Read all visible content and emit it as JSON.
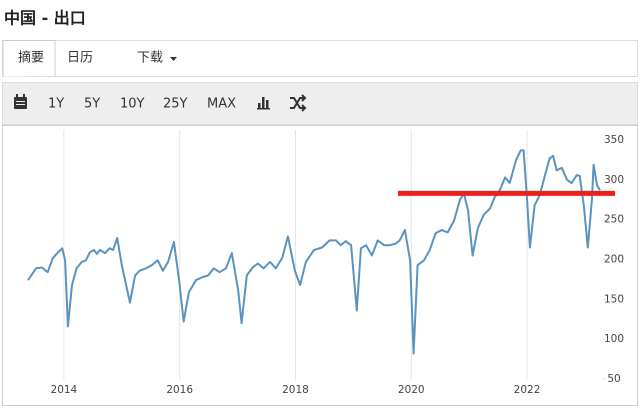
{
  "page_title": "中国 - 出口",
  "tabs": [
    "摘要",
    "日历",
    "下载"
  ],
  "toolbar": [
    "1Y",
    "5Y",
    "10Y",
    "25Y",
    "MAX"
  ],
  "chart_data": {
    "type": "line",
    "x": [
      2013.38,
      2013.52,
      2013.62,
      2013.72,
      2013.81,
      2013.9,
      2013.97,
      2014.02,
      2014.07,
      2014.14,
      2014.22,
      2014.31,
      2014.38,
      2014.45,
      2014.52,
      2014.57,
      2014.62,
      2014.71,
      2014.79,
      2014.85,
      2014.92,
      2015.0,
      2015.14,
      2015.23,
      2015.31,
      2015.42,
      2015.52,
      2015.62,
      2015.71,
      2015.8,
      2015.9,
      2015.99,
      2016.07,
      2016.16,
      2016.28,
      2016.4,
      2016.49,
      2016.59,
      2016.69,
      2016.8,
      2016.9,
      2017.01,
      2017.07,
      2017.16,
      2017.26,
      2017.35,
      2017.45,
      2017.56,
      2017.66,
      2017.77,
      2017.87,
      2017.99,
      2018.08,
      2018.18,
      2018.32,
      2018.46,
      2018.59,
      2018.7,
      2018.78,
      2018.87,
      2018.96,
      2019.06,
      2019.13,
      2019.22,
      2019.32,
      2019.42,
      2019.53,
      2019.63,
      2019.73,
      2019.8,
      2019.89,
      2019.98,
      2020.04,
      2020.11,
      2020.22,
      2020.32,
      2020.42,
      2020.53,
      2020.63,
      2020.74,
      2020.84,
      2020.91,
      2020.98,
      2021.06,
      2021.15,
      2021.25,
      2021.36,
      2021.44,
      2021.53,
      2021.62,
      2021.7,
      2021.81,
      2021.89,
      2021.94,
      2022.0,
      2022.05,
      2022.13,
      2022.22,
      2022.31,
      2022.39,
      2022.45,
      2022.51,
      2022.6,
      2022.69,
      2022.77,
      2022.86,
      2022.91,
      2022.98,
      2023.05,
      2023.12,
      2023.15,
      2023.21,
      2023.26
    ],
    "series": [
      {
        "color": "#5a93bf",
        "values": [
          174,
          189,
          190,
          184,
          202,
          209,
          214,
          199,
          116,
          168,
          189,
          197,
          199,
          209,
          212,
          207,
          212,
          208,
          214,
          212,
          227,
          193,
          146,
          180,
          186,
          189,
          193,
          199,
          186,
          197,
          222,
          174,
          122,
          159,
          174,
          178,
          180,
          189,
          184,
          189,
          208,
          161,
          120,
          180,
          190,
          195,
          189,
          197,
          189,
          202,
          229,
          186,
          168,
          197,
          212,
          215,
          224,
          224,
          218,
          223,
          218,
          136,
          214,
          218,
          205,
          224,
          218,
          218,
          220,
          224,
          237,
          199,
          82,
          193,
          199,
          212,
          233,
          237,
          234,
          249,
          275,
          283,
          262,
          205,
          239,
          256,
          264,
          278,
          287,
          303,
          296,
          325,
          337,
          337,
          275,
          215,
          268,
          281,
          306,
          327,
          330,
          312,
          315,
          300,
          296,
          306,
          305,
          268,
          215,
          275,
          319,
          293,
          287
        ]
      }
    ],
    "reference_line": {
      "value": 283,
      "x": [
        2019.77,
        2023.52
      ],
      "color": "#e8221b"
    },
    "xlim": [
      2013.38,
      2023.26
    ],
    "xticks": [
      2014,
      2016,
      2018,
      2020,
      2022
    ],
    "ylim": [
      50,
      350
    ],
    "yticks": [
      50,
      100,
      150,
      200,
      250,
      300,
      350
    ],
    "grid": "x"
  }
}
